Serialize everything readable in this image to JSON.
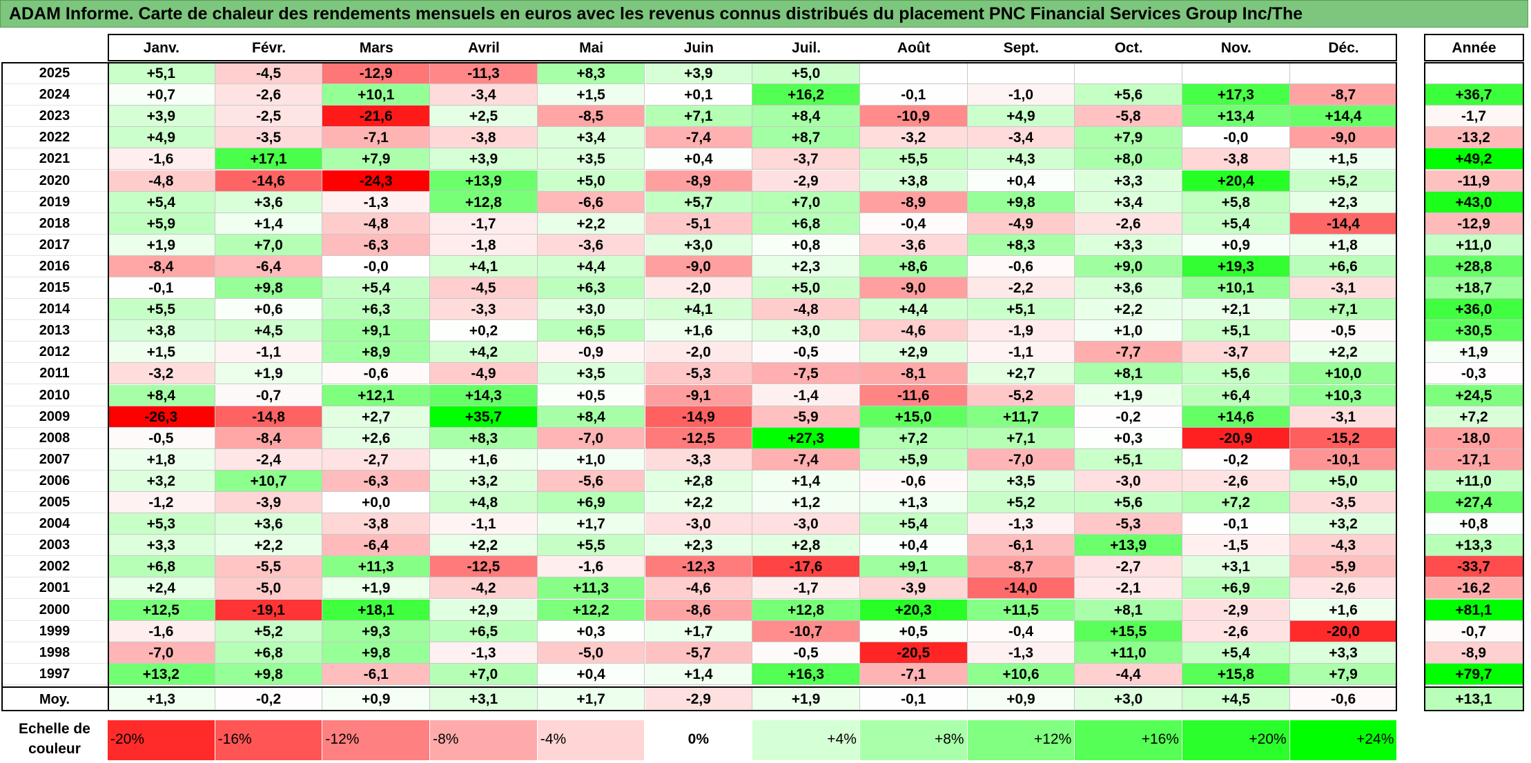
{
  "title": "ADAM Informe. Carte de chaleur des rendements mensuels en euros avec les revenus connus distribués du placement PNC Financial Services Group Inc/The",
  "chart_data": {
    "type": "heatmap",
    "title": "ADAM Informe. Carte de chaleur des rendements mensuels en euros avec les revenus connus distribués du placement PNC Financial Services Group Inc/The",
    "columns": [
      "Janv.",
      "Févr.",
      "Mars",
      "Avril",
      "Mai",
      "Juin",
      "Juil.",
      "Août",
      "Sept.",
      "Oct.",
      "Nov.",
      "Déc."
    ],
    "annual_header": "Année",
    "rows": [
      {
        "year": "2025",
        "values": [
          "+5,1",
          "-4,5",
          "-12,9",
          "-11,3",
          "+8,3",
          "+3,9",
          "+5,0",
          "",
          "",
          "",
          "",
          ""
        ],
        "annual": ""
      },
      {
        "year": "2024",
        "values": [
          "+0,7",
          "-2,6",
          "+10,1",
          "-3,4",
          "+1,5",
          "+0,1",
          "+16,2",
          "-0,1",
          "-1,0",
          "+5,6",
          "+17,3",
          "-8,7"
        ],
        "annual": "+36,7"
      },
      {
        "year": "2023",
        "values": [
          "+3,9",
          "-2,5",
          "-21,6",
          "+2,5",
          "-8,5",
          "+7,1",
          "+8,4",
          "-10,9",
          "+4,9",
          "-5,8",
          "+13,4",
          "+14,4"
        ],
        "annual": "-1,7"
      },
      {
        "year": "2022",
        "values": [
          "+4,9",
          "-3,5",
          "-7,1",
          "-3,8",
          "+3,4",
          "-7,4",
          "+8,7",
          "-3,2",
          "-3,4",
          "+7,9",
          "-0,0",
          "-9,0"
        ],
        "annual": "-13,2"
      },
      {
        "year": "2021",
        "values": [
          "-1,6",
          "+17,1",
          "+7,9",
          "+3,9",
          "+3,5",
          "+0,4",
          "-3,7",
          "+5,5",
          "+4,3",
          "+8,0",
          "-3,8",
          "+1,5"
        ],
        "annual": "+49,2"
      },
      {
        "year": "2020",
        "values": [
          "-4,8",
          "-14,6",
          "-24,3",
          "+13,9",
          "+5,0",
          "-8,9",
          "-2,9",
          "+3,8",
          "+0,4",
          "+3,3",
          "+20,4",
          "+5,2"
        ],
        "annual": "-11,9"
      },
      {
        "year": "2019",
        "values": [
          "+5,4",
          "+3,6",
          "-1,3",
          "+12,8",
          "-6,6",
          "+5,7",
          "+7,0",
          "-8,9",
          "+9,8",
          "+3,4",
          "+5,8",
          "+2,3"
        ],
        "annual": "+43,0"
      },
      {
        "year": "2018",
        "values": [
          "+5,9",
          "+1,4",
          "-4,8",
          "-1,7",
          "+2,2",
          "-5,1",
          "+6,8",
          "-0,4",
          "-4,9",
          "-2,6",
          "+5,4",
          "-14,4"
        ],
        "annual": "-12,9"
      },
      {
        "year": "2017",
        "values": [
          "+1,9",
          "+7,0",
          "-6,3",
          "-1,8",
          "-3,6",
          "+3,0",
          "+0,8",
          "-3,6",
          "+8,3",
          "+3,3",
          "+0,9",
          "+1,8"
        ],
        "annual": "+11,0"
      },
      {
        "year": "2016",
        "values": [
          "-8,4",
          "-6,4",
          "-0,0",
          "+4,1",
          "+4,4",
          "-9,0",
          "+2,3",
          "+8,6",
          "-0,6",
          "+9,0",
          "+19,3",
          "+6,6"
        ],
        "annual": "+28,8"
      },
      {
        "year": "2015",
        "values": [
          "-0,1",
          "+9,8",
          "+5,4",
          "-4,5",
          "+6,3",
          "-2,0",
          "+5,0",
          "-9,0",
          "-2,2",
          "+3,6",
          "+10,1",
          "-3,1"
        ],
        "annual": "+18,7"
      },
      {
        "year": "2014",
        "values": [
          "+5,5",
          "+0,6",
          "+6,3",
          "-3,3",
          "+3,0",
          "+4,1",
          "-4,8",
          "+4,4",
          "+5,1",
          "+2,2",
          "+2,1",
          "+7,1"
        ],
        "annual": "+36,0"
      },
      {
        "year": "2013",
        "values": [
          "+3,8",
          "+4,5",
          "+9,1",
          "+0,2",
          "+6,5",
          "+1,6",
          "+3,0",
          "-4,6",
          "-1,9",
          "+1,0",
          "+5,1",
          "-0,5"
        ],
        "annual": "+30,5"
      },
      {
        "year": "2012",
        "values": [
          "+1,5",
          "-1,1",
          "+8,9",
          "+4,2",
          "-0,9",
          "-2,0",
          "-0,5",
          "+2,9",
          "-1,1",
          "-7,7",
          "-3,7",
          "+2,2"
        ],
        "annual": "+1,9"
      },
      {
        "year": "2011",
        "values": [
          "-3,2",
          "+1,9",
          "-0,6",
          "-4,9",
          "+3,5",
          "-5,3",
          "-7,5",
          "-8,1",
          "+2,7",
          "+8,1",
          "+5,6",
          "+10,0"
        ],
        "annual": "-0,3"
      },
      {
        "year": "2010",
        "values": [
          "+8,4",
          "-0,7",
          "+12,1",
          "+14,3",
          "+0,5",
          "-9,1",
          "-1,4",
          "-11,6",
          "-5,2",
          "+1,9",
          "+6,4",
          "+10,3"
        ],
        "annual": "+24,5"
      },
      {
        "year": "2009",
        "values": [
          "-26,3",
          "-14,8",
          "+2,7",
          "+35,7",
          "+8,4",
          "-14,9",
          "-5,9",
          "+15,0",
          "+11,7",
          "-0,2",
          "+14,6",
          "-3,1"
        ],
        "annual": "+7,2"
      },
      {
        "year": "2008",
        "values": [
          "-0,5",
          "-8,4",
          "+2,6",
          "+8,3",
          "-7,0",
          "-12,5",
          "+27,3",
          "+7,2",
          "+7,1",
          "+0,3",
          "-20,9",
          "-15,2"
        ],
        "annual": "-18,0"
      },
      {
        "year": "2007",
        "values": [
          "+1,8",
          "-2,4",
          "-2,7",
          "+1,6",
          "+1,0",
          "-3,3",
          "-7,4",
          "+5,9",
          "-7,0",
          "+5,1",
          "-0,2",
          "-10,1"
        ],
        "annual": "-17,1"
      },
      {
        "year": "2006",
        "values": [
          "+3,2",
          "+10,7",
          "-6,3",
          "+3,2",
          "-5,6",
          "+2,8",
          "+1,4",
          "-0,6",
          "+3,5",
          "-3,0",
          "-2,6",
          "+5,0"
        ],
        "annual": "+11,0"
      },
      {
        "year": "2005",
        "values": [
          "-1,2",
          "-3,9",
          "+0,0",
          "+4,8",
          "+6,9",
          "+2,2",
          "+1,2",
          "+1,3",
          "+5,2",
          "+5,6",
          "+7,2",
          "-3,5"
        ],
        "annual": "+27,4"
      },
      {
        "year": "2004",
        "values": [
          "+5,3",
          "+3,6",
          "-3,8",
          "-1,1",
          "+1,7",
          "-3,0",
          "-3,0",
          "+5,4",
          "-1,3",
          "-5,3",
          "-0,1",
          "+3,2"
        ],
        "annual": "+0,8"
      },
      {
        "year": "2003",
        "values": [
          "+3,3",
          "+2,2",
          "-6,4",
          "+2,2",
          "+5,5",
          "+2,3",
          "+2,8",
          "+0,4",
          "-6,1",
          "+13,9",
          "-1,5",
          "-4,3"
        ],
        "annual": "+13,3"
      },
      {
        "year": "2002",
        "values": [
          "+6,8",
          "-5,5",
          "+11,3",
          "-12,5",
          "-1,6",
          "-12,3",
          "-17,6",
          "+9,1",
          "-8,7",
          "-2,7",
          "+3,1",
          "-5,9"
        ],
        "annual": "-33,7"
      },
      {
        "year": "2001",
        "values": [
          "+2,4",
          "-5,0",
          "+1,9",
          "-4,2",
          "+11,3",
          "-4,6",
          "-1,7",
          "-3,9",
          "-14,0",
          "-2,1",
          "+6,9",
          "-2,6"
        ],
        "annual": "-16,2"
      },
      {
        "year": "2000",
        "values": [
          "+12,5",
          "-19,1",
          "+18,1",
          "+2,9",
          "+12,2",
          "-8,6",
          "+12,8",
          "+20,3",
          "+11,5",
          "+8,1",
          "-2,9",
          "+1,6"
        ],
        "annual": "+81,1"
      },
      {
        "year": "1999",
        "values": [
          "-1,6",
          "+5,2",
          "+9,3",
          "+6,5",
          "+0,3",
          "+1,7",
          "-10,7",
          "+0,5",
          "-0,4",
          "+15,5",
          "-2,6",
          "-20,0"
        ],
        "annual": "-0,7"
      },
      {
        "year": "1998",
        "values": [
          "-7,0",
          "+6,8",
          "+9,8",
          "-1,3",
          "-5,0",
          "-5,7",
          "-0,5",
          "-20,5",
          "-1,3",
          "+11,0",
          "+5,4",
          "+3,3"
        ],
        "annual": "-8,9"
      },
      {
        "year": "1997",
        "values": [
          "+13,2",
          "+9,8",
          "-6,1",
          "+7,0",
          "+0,4",
          "+1,4",
          "+16,3",
          "-7,1",
          "+10,6",
          "-4,4",
          "+15,8",
          "+7,9"
        ],
        "annual": "+79,7"
      }
    ],
    "average": {
      "label": "Moy.",
      "values": [
        "+1,3",
        "-0,2",
        "+0,9",
        "+3,1",
        "+1,7",
        "-2,9",
        "+1,9",
        "-0,1",
        "+0,9",
        "+3,0",
        "+4,5",
        "-0,6"
      ],
      "annual": "+13,1"
    },
    "color_scale": {
      "label_line1": "Echelle de",
      "label_line2": "couleur",
      "stops": [
        "-20%",
        "-16%",
        "-12%",
        "-8%",
        "-4%",
        "0%",
        "+4%",
        "+8%",
        "+12%",
        "+16%",
        "+20%",
        "+24%"
      ]
    },
    "colors": {
      "negative": "#ff0000",
      "neutral": "#ffffff",
      "positive": "#00ff00"
    }
  }
}
